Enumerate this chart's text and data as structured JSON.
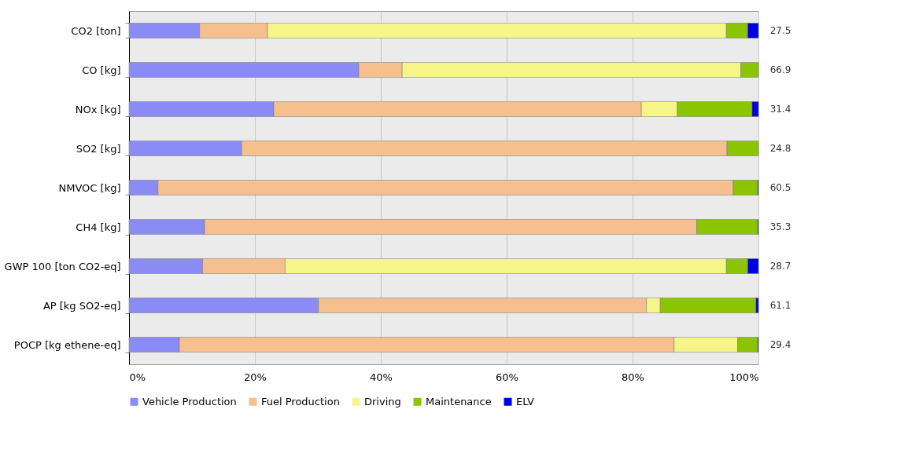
{
  "chart_data": {
    "type": "bar",
    "orientation": "horizontal",
    "stacked": true,
    "categories": [
      "CO2 [ton]",
      "CO [kg]",
      "NOx [kg]",
      "SO2 [kg]",
      "NMVOC [kg]",
      "CH4 [kg]",
      "GWP 100 [ton CO2-eq]",
      "AP [kg SO2-eq]",
      "POCP [kg ethene-eq]"
    ],
    "series": [
      {
        "name": "Vehicle Production",
        "color": "#8b8bf5",
        "values": [
          11.2,
          36.5,
          23.0,
          17.9,
          4.6,
          12.0,
          11.7,
          30.1,
          8.0
        ]
      },
      {
        "name": "Fuel Production",
        "color": "#f5c08e",
        "values": [
          10.8,
          6.9,
          58.4,
          77.1,
          91.4,
          78.2,
          13.1,
          52.1,
          78.6
        ]
      },
      {
        "name": "Driving",
        "color": "#f5f58a",
        "values": [
          72.9,
          53.8,
          5.7,
          null,
          null,
          null,
          70.1,
          2.2,
          10.1
        ]
      },
      {
        "name": "Maintenance",
        "color": "#8bc400",
        "values": [
          3.4,
          2.8,
          11.9,
          5.0,
          3.9,
          9.7,
          3.4,
          15.2,
          3.2
        ]
      },
      {
        "name": "ELV",
        "color": "#0000e0",
        "values": [
          1.7,
          null,
          1.0,
          null,
          0.1,
          0.1,
          1.7,
          0.4,
          0.1
        ]
      }
    ],
    "annotations": [
      "27.5",
      "66.9",
      "31.4",
      "24.8",
      "60.5",
      "35.3",
      "28.7",
      "61.1",
      "29.4"
    ],
    "xlim": [
      0,
      100
    ],
    "xticks": [
      {
        "value": 0,
        "label": "0%"
      },
      {
        "value": 20,
        "label": "20%"
      },
      {
        "value": 40,
        "label": "40%"
      },
      {
        "value": 60,
        "label": "60%"
      },
      {
        "value": 80,
        "label": "80%"
      },
      {
        "value": 100,
        "label": "100%"
      }
    ],
    "grid": "x",
    "legend": "bottom"
  }
}
